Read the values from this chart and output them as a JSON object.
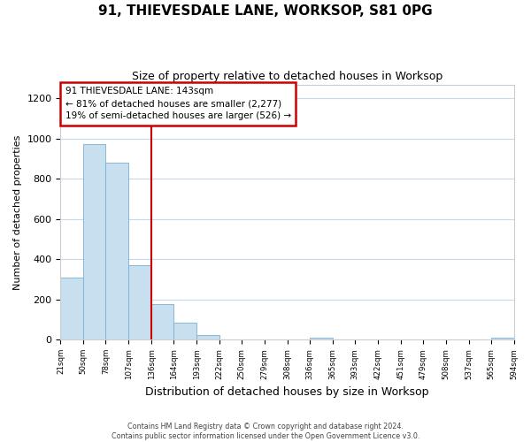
{
  "title": "91, THIEVESDALE LANE, WORKSOP, S81 0PG",
  "subtitle": "Size of property relative to detached houses in Worksop",
  "xlabel": "Distribution of detached houses by size in Worksop",
  "ylabel": "Number of detached properties",
  "bar_edges": [
    21,
    50,
    78,
    107,
    136,
    164,
    193,
    222,
    250,
    279,
    308,
    336,
    365,
    393,
    422,
    451,
    479,
    508,
    537,
    565,
    594
  ],
  "bar_heights": [
    310,
    975,
    880,
    370,
    175,
    82,
    22,
    0,
    0,
    0,
    0,
    8,
    0,
    0,
    0,
    0,
    0,
    0,
    0,
    8
  ],
  "bar_color": "#c8dff0",
  "bar_edge_color": "#7bafd4",
  "grid_color": "#c8d8e8",
  "annotation_line1": "91 THIEVESDALE LANE: 143sqm",
  "annotation_line2": "← 81% of detached houses are smaller (2,277)",
  "annotation_line3": "19% of semi-detached houses are larger (526) →",
  "vline_x": 136,
  "vline_color": "#cc0000",
  "annotation_box_edge_color": "#cc0000",
  "ylim": [
    0,
    1270
  ],
  "xlim_left": 21,
  "xlim_right": 594,
  "tick_labels": [
    "21sqm",
    "50sqm",
    "78sqm",
    "107sqm",
    "136sqm",
    "164sqm",
    "193sqm",
    "222sqm",
    "250sqm",
    "279sqm",
    "308sqm",
    "336sqm",
    "365sqm",
    "393sqm",
    "422sqm",
    "451sqm",
    "479sqm",
    "508sqm",
    "537sqm",
    "565sqm",
    "594sqm"
  ],
  "footer_text": "Contains HM Land Registry data © Crown copyright and database right 2024.\nContains public sector information licensed under the Open Government Licence v3.0.",
  "title_fontsize": 11,
  "subtitle_fontsize": 9
}
